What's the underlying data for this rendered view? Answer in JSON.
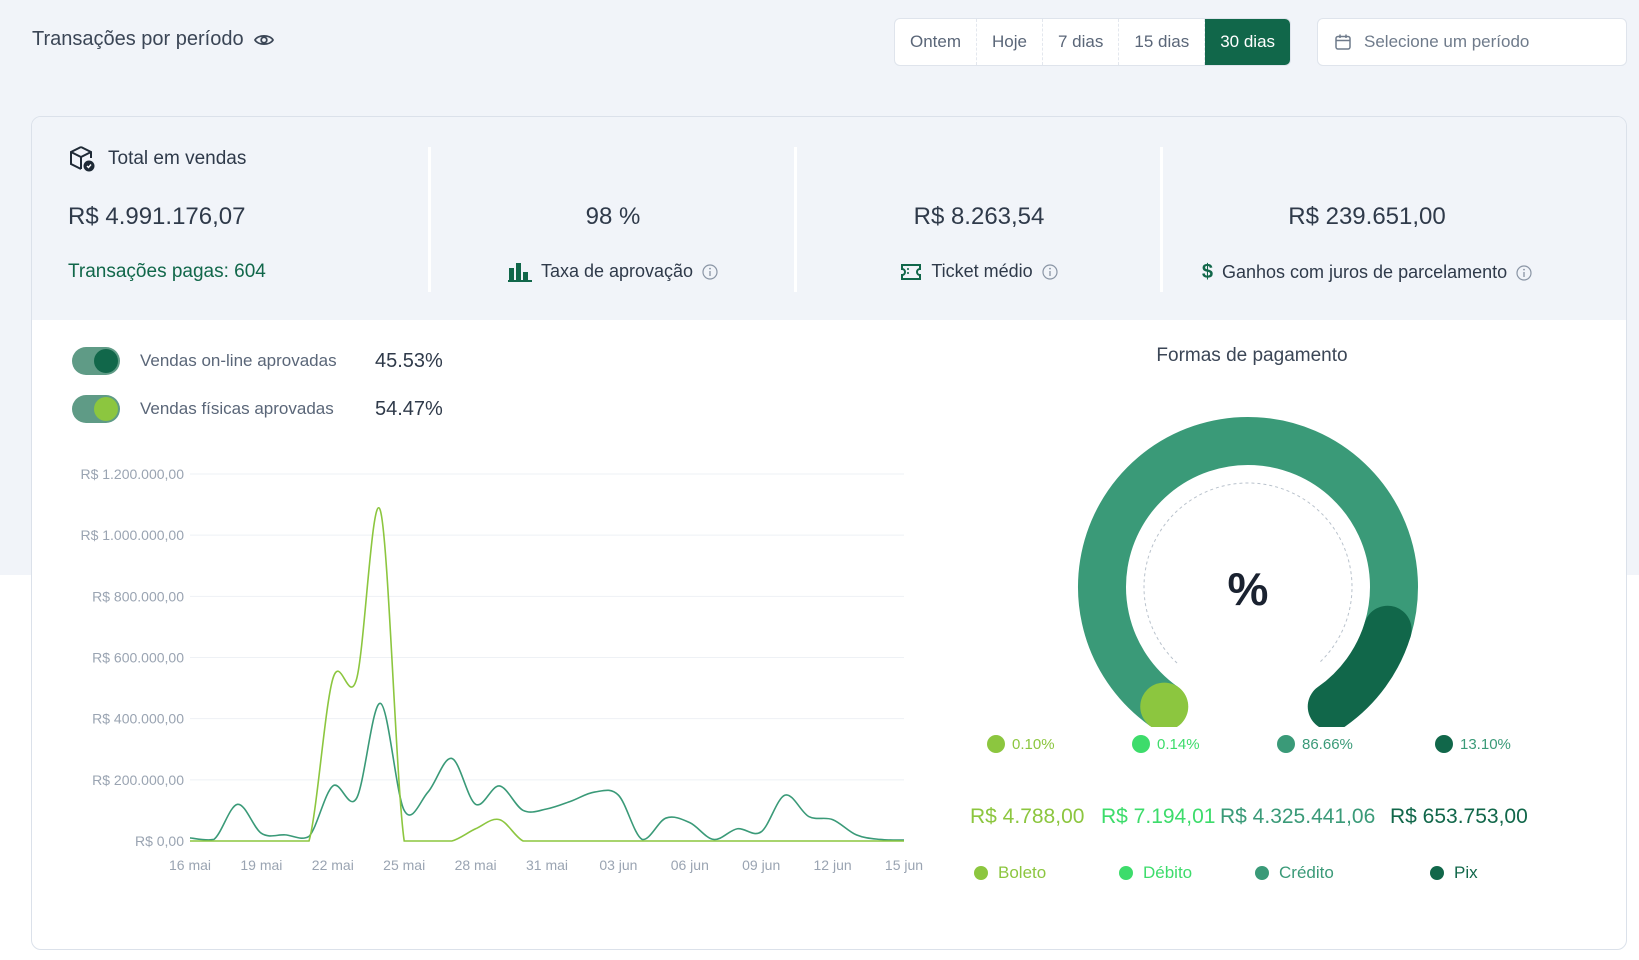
{
  "header": {
    "title": "Transações por período",
    "periods": [
      "Ontem",
      "Hoje",
      "7 dias",
      "15 dias",
      "30 dias"
    ],
    "active_period": "30 dias",
    "date_placeholder": "Selecione um período"
  },
  "stats": {
    "total": {
      "title": "Total em vendas",
      "value": "R$ 4.991.176,07",
      "sub": "Transações pagas: 604"
    },
    "approval": {
      "value": "98 %",
      "label": "Taxa de aprovação"
    },
    "ticket": {
      "value": "R$ 8.263,54",
      "label": "Ticket médio"
    },
    "interest": {
      "value": "R$ 239.651,00",
      "label": "Ganhos com juros de parcelamento"
    }
  },
  "toggles": [
    {
      "label": "Vendas on-line aprovadas",
      "pct": "45.53%",
      "color": "#11674a"
    },
    {
      "label": "Vendas físicas aprovadas",
      "pct": "54.47%",
      "color": "#8cc63f"
    }
  ],
  "chart_data": {
    "type": "line",
    "y_tick_labels": [
      "R$ 1.200.000,00",
      "R$ 1.000.000,00",
      "R$ 800.000,00",
      "R$ 600.000,00",
      "R$ 400.000,00",
      "R$ 200.000,00",
      "R$ 0,00"
    ],
    "ylim": [
      0,
      1200000
    ],
    "x": [
      "16 mai",
      "17 mai",
      "18 mai",
      "19 mai",
      "20 mai",
      "21 mai",
      "22 mai",
      "23 mai",
      "24 mai",
      "25 mai",
      "26 mai",
      "27 mai",
      "28 mai",
      "29 mai",
      "30 mai",
      "31 mai",
      "01 jun",
      "02 jun",
      "03 jun",
      "04 jun",
      "05 jun",
      "06 jun",
      "07 jun",
      "08 jun",
      "09 jun",
      "10 jun",
      "11 jun",
      "12 jun",
      "13 jun",
      "14 jun",
      "15 jun"
    ],
    "x_tick_labels": [
      "16 mai",
      "19 mai",
      "22 mai",
      "25 mai",
      "28 mai",
      "31 mai",
      "03 jun",
      "06 jun",
      "09 jun",
      "12 jun",
      "15 jun"
    ],
    "series": [
      {
        "color": "#3a9a78",
        "values": [
          10000,
          5000,
          120000,
          25000,
          20000,
          15000,
          180000,
          140000,
          450000,
          100000,
          160000,
          270000,
          120000,
          180000,
          100000,
          105000,
          130000,
          160000,
          150000,
          5000,
          75000,
          60000,
          5000,
          40000,
          30000,
          150000,
          80000,
          70000,
          20000,
          5000,
          3000
        ]
      },
      {
        "color": "#8cc63f",
        "values": [
          0,
          0,
          0,
          0,
          0,
          0,
          530000,
          530000,
          1080000,
          0,
          0,
          0,
          40000,
          70000,
          0,
          0,
          0,
          0,
          0,
          0,
          0,
          0,
          0,
          0,
          0,
          0,
          0,
          0,
          0,
          0,
          0
        ]
      }
    ],
    "grid": true
  },
  "payments": {
    "title": "Formas de pagamento",
    "center_symbol": "%",
    "items": [
      {
        "name": "Boleto",
        "pct": "0.10%",
        "amount": "R$ 4.788,00",
        "color": "#8cc63f",
        "share": 0.1
      },
      {
        "name": "Débito",
        "pct": "0.14%",
        "amount": "R$ 7.194,01",
        "color": "#3ddc6b",
        "share": 0.14
      },
      {
        "name": "Crédito",
        "pct": "86.66%",
        "amount": "R$ 4.325.441,06",
        "color": "#3a9a78",
        "share": 86.66
      },
      {
        "name": "Pix",
        "pct": "13.10%",
        "amount": "R$ 653.753,00",
        "color": "#11674a",
        "share": 13.1
      }
    ]
  }
}
